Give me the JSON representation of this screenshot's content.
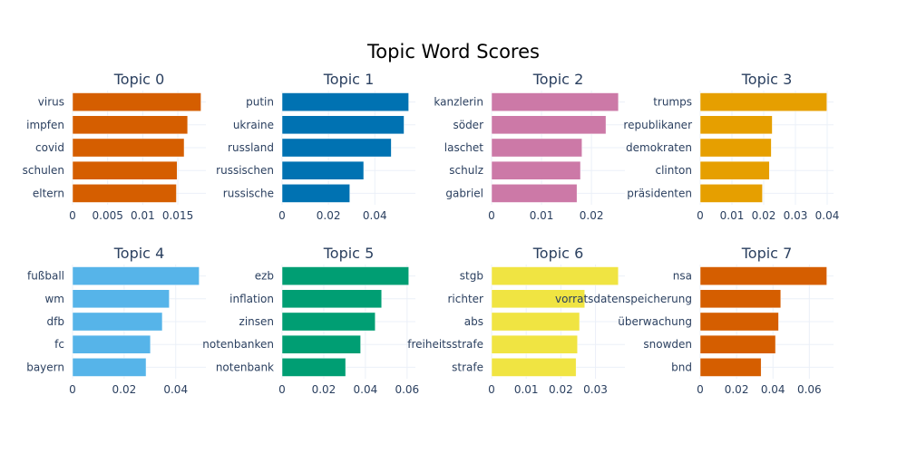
{
  "chart_data": {
    "type": "bar",
    "orientation": "horizontal",
    "title": "Topic Word Scores",
    "grid": true,
    "legend": "none",
    "subplots": [
      {
        "title": "Topic 0",
        "color": "#D55E00",
        "categories": [
          "virus",
          "impfen",
          "covid",
          "schulen",
          "eltern"
        ],
        "values": [
          0.0183,
          0.0164,
          0.0159,
          0.0149,
          0.0148
        ],
        "xlim": [
          0,
          0.019
        ],
        "xticks": [
          0,
          0.005,
          0.01,
          0.015
        ],
        "xtick_labels": [
          "0",
          "0.005",
          "0.01",
          "0.015"
        ]
      },
      {
        "title": "Topic 1",
        "color": "#0072B2",
        "categories": [
          "putin",
          "ukraine",
          "russland",
          "russischen",
          "russische"
        ],
        "values": [
          0.0546,
          0.0526,
          0.0471,
          0.0352,
          0.0292
        ],
        "xlim": [
          0,
          0.0575
        ],
        "xticks": [
          0,
          0.02,
          0.04
        ],
        "xtick_labels": [
          "0",
          "0.02",
          "0.04"
        ]
      },
      {
        "title": "Topic 2",
        "color": "#CC79A7",
        "categories": [
          "kanzlerin",
          "söder",
          "laschet",
          "schulz",
          "gabriel"
        ],
        "values": [
          0.0254,
          0.0229,
          0.0181,
          0.0178,
          0.0171
        ],
        "xlim": [
          0,
          0.0267
        ],
        "xticks": [
          0,
          0.01,
          0.02
        ],
        "xtick_labels": [
          "0",
          "0.01",
          "0.02"
        ]
      },
      {
        "title": "Topic 3",
        "color": "#E69F00",
        "categories": [
          "trumps",
          "republikaner",
          "demokraten",
          "clinton",
          "präsidenten"
        ],
        "values": [
          0.0399,
          0.0227,
          0.0224,
          0.0218,
          0.0196
        ],
        "xlim": [
          0,
          0.042
        ],
        "xticks": [
          0,
          0.01,
          0.02,
          0.03,
          0.04
        ],
        "xtick_labels": [
          "0",
          "0.01",
          "0.02",
          "0.03",
          "0.04"
        ]
      },
      {
        "title": "Topic 4",
        "color": "#56B4E9",
        "categories": [
          "fußball",
          "wm",
          "dfb",
          "fc",
          "bayern"
        ],
        "values": [
          0.0491,
          0.0375,
          0.0348,
          0.0302,
          0.0285
        ],
        "xlim": [
          0,
          0.0517
        ],
        "xticks": [
          0,
          0.02,
          0.04
        ],
        "xtick_labels": [
          "0",
          "0.02",
          "0.04"
        ]
      },
      {
        "title": "Topic 5",
        "color": "#009E73",
        "categories": [
          "ezb",
          "inflation",
          "zinsen",
          "notenbanken",
          "notenbank"
        ],
        "values": [
          0.0608,
          0.0478,
          0.0447,
          0.0377,
          0.0305
        ],
        "xlim": [
          0,
          0.064
        ],
        "xticks": [
          0,
          0.02,
          0.04,
          0.06
        ],
        "xtick_labels": [
          "0",
          "0.02",
          "0.04",
          "0.06"
        ]
      },
      {
        "title": "Topic 6",
        "color": "#F0E442",
        "categories": [
          "stgb",
          "richter",
          "abs",
          "freiheitsstrafe",
          "strafe"
        ],
        "values": [
          0.0366,
          0.0269,
          0.0254,
          0.0248,
          0.0244
        ],
        "xlim": [
          0,
          0.0385
        ],
        "xticks": [
          0,
          0.01,
          0.02,
          0.03
        ],
        "xtick_labels": [
          "0",
          "0.01",
          "0.02",
          "0.03"
        ]
      },
      {
        "title": "Topic 7",
        "color": "#D55E00",
        "categories": [
          "nsa",
          "vorratsdatenspeicherung",
          "überwachung",
          "snowden",
          "bnd"
        ],
        "values": [
          0.0696,
          0.0443,
          0.0431,
          0.0414,
          0.0335
        ],
        "xlim": [
          0,
          0.0733
        ],
        "xticks": [
          0,
          0.02,
          0.04,
          0.06
        ],
        "xtick_labels": [
          "0",
          "0.02",
          "0.04",
          "0.06"
        ]
      }
    ]
  }
}
